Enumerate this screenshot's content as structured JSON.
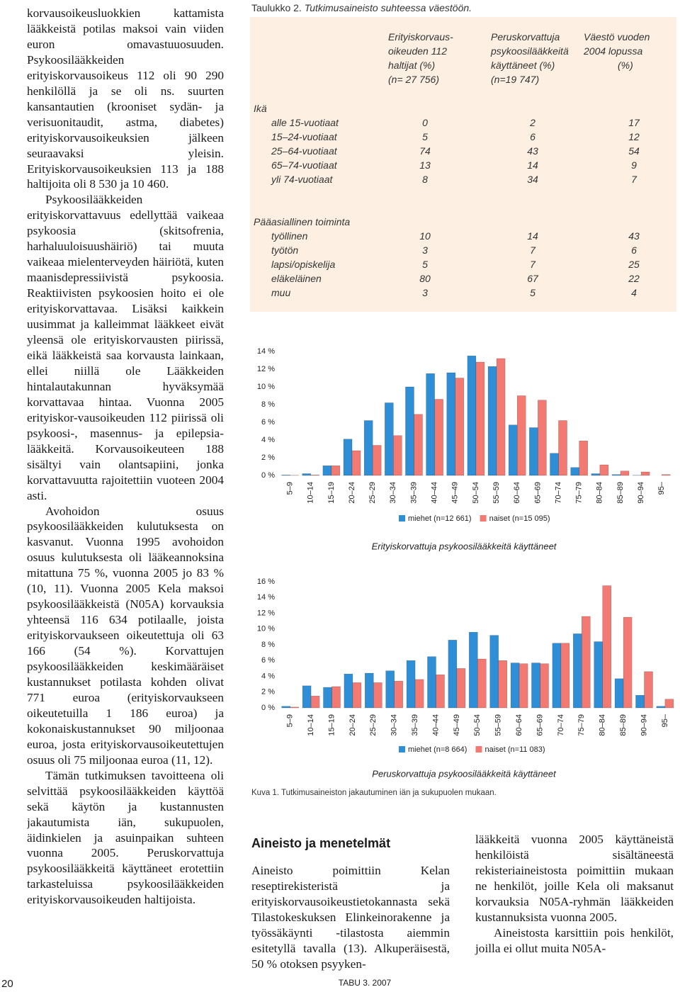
{
  "document": {
    "left_paragraphs": [
      "korvausoikeusluokkien kattamista lääkkeistä potilas maksoi vain viiden euron omavastuuosuuden. Psykoosilääkkeiden erityiskorvausoikeus 112 oli 90 290 henkilöllä ja se oli ns. suurten kansantautien (krooniset sydän- ja verisuonitaudit, astma, diabetes) erityiskorvausoikeuksien jälkeen seuraavaksi yleisin. Erityiskorvausoikeuksien 113 ja 188 haltijoita oli 8 530 ja 10 460.",
      "Psykoosilääkkeiden erityiskorvattavuus edellyttää vaikeaa psykoosia (skitsofrenia, harhaluuloisuushäiriö) tai muuta vaikeaa mielenterveyden häiriötä, kuten maanisdepressiivistä psykoosia. Reaktiivisten psykoosien hoito ei ole erityiskorvattavaa. Lisäksi kaikkein uusimmat ja kalleimmat lääkkeet eivät yleensä ole erityiskorvausten piirissä, eikä lääkkeistä saa korvausta lainkaan, ellei niillä ole Lääkkeiden hintalautakunnan hyväksymää korvattavaa hintaa. Vuonna 2005 erityiskor-vausoikeuden 112 piirissä oli psykoosi-, masennus- ja epilepsia-lääkkeitä. Korvausoikeuteen 188 sisältyi vain olantsapiini, jonka korvattavuutta rajoitettiin vuoteen 2004 asti.",
      "Avohoidon osuus psykoosilääkkeiden kulutuksesta on kasvanut. Vuonna 1995 avohoidon osuus kulutuksesta oli lääkeannoksina mitattuna 75 %, vuonna 2005 jo 83 % (10, 11). Vuonna 2005 Kela maksoi psykoosilääkkeistä (N05A) korvauksia yhteensä 116 634 potilaalle, joista erityiskorvaukseen oikeutettuja oli 63 166 (54 %). Korvattujen psykoosilääkkeiden keskimääräiset kustannukset potilasta kohden olivat 771 euroa (erityiskorvaukseen oikeutetuilla 1 186 euroa) ja kokonaiskustannukset 90 miljoonaa euroa, josta erityiskorvausoikeutettujen osuus oli 75 miljoonaa euroa (11, 12).",
      "Tämän tutkimuksen tavoitteena oli selvittää psykoosilääkkeiden käyttöä sekä käytön ja kustannusten jakautumista iän, sukupuolen, äidinkielen ja asuinpaikan suhteen vuonna 2005. Peruskorvattuja psykoosilääkkeitä käyttäneet erotettiin tarkasteluissa psykoosilääkkeiden erityiskorvausoikeuden haltijoista."
    ],
    "table": {
      "number": "Taulukko 2.",
      "title": "Tutkimusaineisto suhteessa väestöön.",
      "columns": [
        [
          "Erityiskorvaus-",
          "oikeuden 112",
          "haltijat (%)",
          "(n= 27 756)"
        ],
        [
          "Peruskorvattuja",
          "psykoosilääkkeitä",
          "käyttäneet (%)",
          "(n=19 747)"
        ],
        [
          "Väestö vuoden",
          "2004 lopussa",
          "(%)"
        ]
      ],
      "sections": [
        {
          "name": "Ikä",
          "rows": [
            {
              "label": "alle 15-vuotiaat",
              "values": [
                0,
                2,
                17
              ]
            },
            {
              "label": "15–24-vuotiaat",
              "values": [
                5,
                6,
                12
              ]
            },
            {
              "label": "25–64-vuotiaat",
              "values": [
                74,
                43,
                54
              ]
            },
            {
              "label": "65–74-vuotiaat",
              "values": [
                13,
                14,
                9
              ]
            },
            {
              "label": "yli 74-vuotiaat",
              "values": [
                8,
                34,
                7
              ]
            }
          ]
        },
        {
          "name": "Pääasiallinen toiminta",
          "rows": [
            {
              "label": "työllinen",
              "values": [
                10,
                14,
                43
              ]
            },
            {
              "label": "työtön",
              "values": [
                3,
                7,
                6
              ]
            },
            {
              "label": "lapsi/opiskelija",
              "values": [
                5,
                7,
                25
              ]
            },
            {
              "label": "eläkeläinen",
              "values": [
                80,
                67,
                22
              ]
            },
            {
              "label": "muu",
              "values": [
                3,
                5,
                4
              ]
            }
          ]
        }
      ]
    },
    "figure_caption": "Kuva 1. Tutkimusaineiston jakautuminen iän ja sukupuolen mukaan.",
    "section_heading": "Aineisto ja menetelmät",
    "middle_paragraph": "Aineisto poimittiin Kelan reseptirekisteristä ja erityiskorvausoikeustietokannasta sekä Tilastokeskuksen Elinkeinorakenne ja työssäkäynti -tilastosta aiemmin esitetyllä tavalla (13). Alkuperäisestä, 50 % otoksen psyyken-",
    "right_paragraphs": [
      "lääkkeitä vuonna 2005 käyttäneistä henkilöistä sisältäneestä rekisteriaineistosta poimittiin mukaan ne henkilöt, joille Kela oli maksanut korvauksia N05A-ryhmän lääkkeiden kustannuksista vuonna 2005.",
      "Aineistosta karsittiin pois henkilöt, joilla ei ollut muita N05A-"
    ],
    "footer": "TABU 3. 2007",
    "page_number": "20"
  },
  "chart_data": [
    {
      "type": "bar",
      "title": "Erityiskorvattuja psykoosilääkkeitä käyttäneet",
      "categories": [
        "5–9",
        "10–14",
        "15–19",
        "20–24",
        "25–29",
        "30–34",
        "35–39",
        "40–44",
        "45–49",
        "50–54",
        "55–59",
        "60–64",
        "65–69",
        "70–74",
        "75–79",
        "80–84",
        "85–89",
        "90–94",
        "95–"
      ],
      "series": [
        {
          "name": "miehet (n=12 661)",
          "color": "#2f8fd6",
          "values": [
            0.05,
            0.2,
            1.1,
            4.1,
            6.2,
            8.2,
            10.0,
            11.5,
            11.6,
            13.5,
            12.3,
            5.7,
            5.4,
            2.5,
            0.9,
            0.2,
            0.1,
            0.02,
            0
          ]
        },
        {
          "name": "naiset (n=15 095)",
          "color": "#f27a72",
          "values": [
            0.02,
            0.05,
            1.1,
            2.8,
            3.4,
            4.5,
            6.9,
            8.6,
            11.0,
            12.8,
            13.2,
            9.0,
            8.5,
            6.2,
            3.9,
            1.2,
            0.5,
            0.4,
            0.1
          ]
        }
      ],
      "ylim": [
        0,
        14
      ],
      "yticks": [
        {
          "value": 0,
          "label": "0 %"
        },
        {
          "value": 2,
          "label": "2 %"
        },
        {
          "value": 4,
          "label": "4 %"
        },
        {
          "value": 6,
          "label": "6 %"
        },
        {
          "value": 8,
          "label": "8 %"
        },
        {
          "value": 10,
          "label": "10 %"
        },
        {
          "value": 12,
          "label": "12 %"
        },
        {
          "value": 14,
          "label": "14 %"
        }
      ],
      "grid": false
    },
    {
      "type": "bar",
      "title": "Peruskorvattuja psykoosilääkkeitä käyttäneet",
      "categories": [
        "5–9",
        "10–14",
        "15–19",
        "20–24",
        "25–29",
        "30–34",
        "35–39",
        "40–44",
        "45–49",
        "50–54",
        "55–59",
        "60–64",
        "65–69",
        "70–74",
        "75–79",
        "80–84",
        "85–89",
        "90–94",
        "95–"
      ],
      "series": [
        {
          "name": "miehet (n=8 664)",
          "color": "#2f8fd6",
          "values": [
            0.2,
            2.8,
            2.6,
            4.3,
            4.4,
            4.7,
            6.0,
            6.5,
            8.6,
            9.6,
            9.2,
            5.7,
            5.7,
            8.2,
            9.4,
            8.4,
            3.7,
            1.6,
            0.2
          ]
        },
        {
          "name": "naiset (n=11 083)",
          "color": "#f27a72",
          "values": [
            0.1,
            1.5,
            2.7,
            3.2,
            3.2,
            3.4,
            3.6,
            4.2,
            5.0,
            6.2,
            6.0,
            5.6,
            5.6,
            8.2,
            11.6,
            15.5,
            11.5,
            4.6,
            1.1
          ]
        }
      ],
      "ylim": [
        0,
        16
      ],
      "yticks": [
        {
          "value": 0,
          "label": "0 %"
        },
        {
          "value": 2,
          "label": "2 %"
        },
        {
          "value": 4,
          "label": "4 %"
        },
        {
          "value": 6,
          "label": "6 %"
        },
        {
          "value": 8,
          "label": "8 %"
        },
        {
          "value": 10,
          "label": "10 %"
        },
        {
          "value": 12,
          "label": "12 %"
        },
        {
          "value": 14,
          "label": "14 %"
        },
        {
          "value": 16,
          "label": "16 %"
        }
      ],
      "grid": false
    }
  ]
}
